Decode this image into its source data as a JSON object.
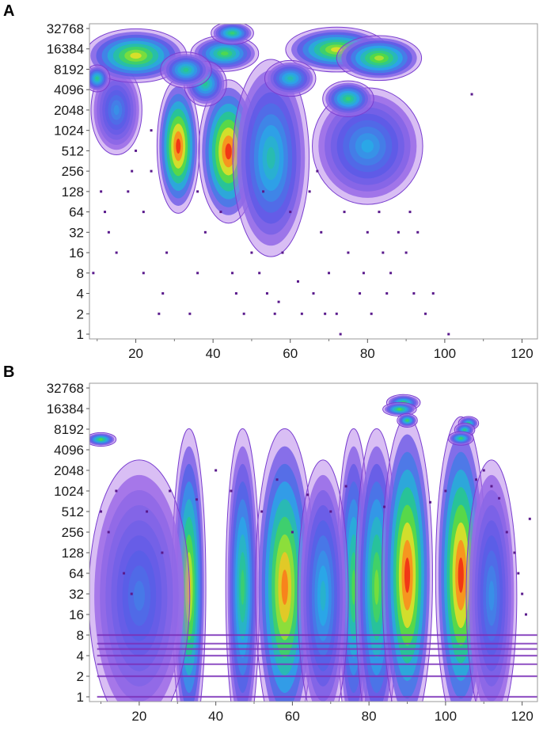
{
  "panel_labels": [
    "A",
    "B"
  ],
  "chart_data": [
    {
      "type": "scatter",
      "panel": "A",
      "title": "",
      "xlabel": "",
      "ylabel": "",
      "xlim": [
        8,
        124
      ],
      "ylim": [
        1,
        32768
      ],
      "yscale": "log2",
      "grid": false,
      "legend": "none",
      "x_ticks": [
        20,
        40,
        60,
        80,
        100,
        120
      ],
      "y_ticks": [
        1,
        2,
        4,
        8,
        16,
        32,
        64,
        128,
        256,
        512,
        1024,
        2048,
        4096,
        8192,
        16384,
        32768
      ],
      "density_clusters": [
        {
          "x": 31,
          "y": 600,
          "sx": 2.5,
          "sy": 1.5,
          "peak": 1.0
        },
        {
          "x": 44,
          "y": 500,
          "sx": 3.5,
          "sy": 1.6,
          "peak": 1.0
        },
        {
          "x": 55,
          "y": 400,
          "sx": 4.5,
          "sy": 2.2,
          "peak": 0.45
        },
        {
          "x": 80,
          "y": 600,
          "sx": 6.5,
          "sy": 1.3,
          "peak": 0.35
        },
        {
          "x": 15,
          "y": 2048,
          "sx": 3.0,
          "sy": 1.0,
          "peak": 0.3
        },
        {
          "x": 20,
          "y": 13000,
          "sx": 6.0,
          "sy": 0.6,
          "peak": 0.75
        },
        {
          "x": 43,
          "y": 14000,
          "sx": 4.0,
          "sy": 0.4,
          "peak": 0.6
        },
        {
          "x": 72,
          "y": 16000,
          "sx": 6.0,
          "sy": 0.5,
          "peak": 0.75
        },
        {
          "x": 83,
          "y": 12000,
          "sx": 5.0,
          "sy": 0.5,
          "peak": 0.7
        },
        {
          "x": 45,
          "y": 28000,
          "sx": 2.5,
          "sy": 0.25,
          "peak": 0.55
        },
        {
          "x": 38,
          "y": 5000,
          "sx": 2.5,
          "sy": 0.5,
          "peak": 0.5
        },
        {
          "x": 75,
          "y": 3000,
          "sx": 3.0,
          "sy": 0.4,
          "peak": 0.55
        },
        {
          "x": 10,
          "y": 6000,
          "sx": 1.5,
          "sy": 0.3,
          "peak": 0.5
        },
        {
          "x": 60,
          "y": 6000,
          "sx": 3.0,
          "sy": 0.4,
          "peak": 0.45
        },
        {
          "x": 33,
          "y": 8000,
          "sx": 3.0,
          "sy": 0.4,
          "peak": 0.5
        }
      ],
      "scatter_points": [
        [
          12,
          64
        ],
        [
          13,
          32
        ],
        [
          15,
          16
        ],
        [
          18,
          128
        ],
        [
          19,
          256
        ],
        [
          20,
          512
        ],
        [
          22,
          64
        ],
        [
          22,
          8
        ],
        [
          24,
          1024
        ],
        [
          24,
          256
        ],
        [
          26,
          2
        ],
        [
          27,
          4
        ],
        [
          28,
          16
        ],
        [
          34,
          2
        ],
        [
          36,
          8
        ],
        [
          38,
          32
        ],
        [
          36,
          128
        ],
        [
          46,
          4
        ],
        [
          48,
          2
        ],
        [
          50,
          16
        ],
        [
          52,
          8
        ],
        [
          54,
          4
        ],
        [
          56,
          2
        ],
        [
          58,
          16
        ],
        [
          60,
          64
        ],
        [
          63,
          2
        ],
        [
          65,
          128
        ],
        [
          66,
          4
        ],
        [
          67,
          256
        ],
        [
          68,
          32
        ],
        [
          70,
          8
        ],
        [
          72,
          2
        ],
        [
          74,
          64
        ],
        [
          75,
          16
        ],
        [
          78,
          4
        ],
        [
          80,
          32
        ],
        [
          81,
          2
        ],
        [
          83,
          64
        ],
        [
          84,
          16
        ],
        [
          86,
          8
        ],
        [
          88,
          32
        ],
        [
          90,
          16
        ],
        [
          92,
          4
        ],
        [
          93,
          32
        ],
        [
          95,
          2
        ],
        [
          97,
          4
        ],
        [
          101,
          1
        ],
        [
          107,
          3500
        ],
        [
          9,
          8
        ],
        [
          11,
          128
        ],
        [
          57,
          3
        ],
        [
          62,
          6
        ],
        [
          69,
          2
        ],
        [
          73,
          1
        ],
        [
          79,
          8
        ],
        [
          85,
          4
        ],
        [
          91,
          64
        ],
        [
          45,
          8
        ],
        [
          42,
          64
        ],
        [
          53,
          128
        ]
      ]
    },
    {
      "type": "scatter",
      "panel": "B",
      "title": "",
      "xlabel": "",
      "ylabel": "",
      "xlim": [
        7,
        124
      ],
      "ylim": [
        1,
        32768
      ],
      "yscale": "log2",
      "grid": false,
      "legend": "none",
      "x_ticks": [
        20,
        40,
        60,
        80,
        100,
        120
      ],
      "y_ticks": [
        1,
        2,
        4,
        8,
        16,
        32,
        64,
        128,
        256,
        512,
        1024,
        2048,
        4096,
        8192,
        16384,
        32768
      ],
      "density_clusters": [
        {
          "x": 33,
          "y": 40,
          "sx": 2.0,
          "sy": 3.5,
          "peak": 0.8
        },
        {
          "x": 47,
          "y": 40,
          "sx": 2.0,
          "sy": 3.5,
          "peak": 0.55
        },
        {
          "x": 58,
          "y": 40,
          "sx": 3.5,
          "sy": 3.5,
          "peak": 0.9
        },
        {
          "x": 76,
          "y": 40,
          "sx": 2.0,
          "sy": 3.5,
          "peak": 0.6
        },
        {
          "x": 82,
          "y": 40,
          "sx": 2.5,
          "sy": 3.5,
          "peak": 0.65
        },
        {
          "x": 90,
          "y": 60,
          "sx": 3.0,
          "sy": 3.5,
          "peak": 1.0
        },
        {
          "x": 104,
          "y": 60,
          "sx": 3.0,
          "sy": 3.5,
          "peak": 1.0
        },
        {
          "x": 68,
          "y": 30,
          "sx": 3.0,
          "sy": 3.0,
          "peak": 0.4
        },
        {
          "x": 20,
          "y": 30,
          "sx": 6.0,
          "sy": 3.0,
          "peak": 0.25
        },
        {
          "x": 112,
          "y": 30,
          "sx": 3.0,
          "sy": 3.0,
          "peak": 0.3
        },
        {
          "x": 89,
          "y": 20000,
          "sx": 2.0,
          "sy": 0.18,
          "peak": 0.55
        },
        {
          "x": 88,
          "y": 16000,
          "sx": 2.0,
          "sy": 0.15,
          "peak": 0.6
        },
        {
          "x": 90,
          "y": 11000,
          "sx": 1.2,
          "sy": 0.15,
          "peak": 0.55
        },
        {
          "x": 106,
          "y": 10000,
          "sx": 1.2,
          "sy": 0.15,
          "peak": 0.5
        },
        {
          "x": 105,
          "y": 8000,
          "sx": 1.2,
          "sy": 0.15,
          "peak": 0.5
        },
        {
          "x": 104,
          "y": 6000,
          "sx": 1.5,
          "sy": 0.15,
          "peak": 0.55
        },
        {
          "x": 10,
          "y": 5800,
          "sx": 1.8,
          "sy": 0.15,
          "peak": 0.6
        }
      ],
      "band_levels": [
        1,
        2,
        3,
        4,
        5,
        6,
        8
      ],
      "scatter_points": [
        [
          10,
          512
        ],
        [
          12,
          256
        ],
        [
          14,
          1024
        ],
        [
          16,
          64
        ],
        [
          18,
          32
        ],
        [
          22,
          512
        ],
        [
          26,
          128
        ],
        [
          28,
          1024
        ],
        [
          35,
          768
        ],
        [
          40,
          2048
        ],
        [
          44,
          1024
        ],
        [
          52,
          512
        ],
        [
          56,
          1500
        ],
        [
          60,
          256
        ],
        [
          64,
          900
        ],
        [
          70,
          512
        ],
        [
          74,
          1200
        ],
        [
          84,
          600
        ],
        [
          96,
          700
        ],
        [
          100,
          1024
        ],
        [
          108,
          1500
        ],
        [
          110,
          2048
        ],
        [
          112,
          1200
        ],
        [
          114,
          800
        ],
        [
          116,
          256
        ],
        [
          118,
          128
        ],
        [
          119,
          64
        ],
        [
          120,
          32
        ],
        [
          121,
          16
        ],
        [
          122,
          400
        ]
      ]
    }
  ]
}
